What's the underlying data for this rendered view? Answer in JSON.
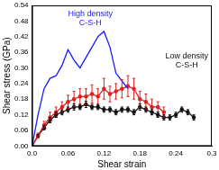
{
  "chart_data": {
    "type": "line",
    "x_label": "Shear strain",
    "y_label": "Shear stress (GPa)",
    "xlim": [
      0,
      0.3
    ],
    "xticks": [
      {
        "value": 0,
        "label": "0.0"
      },
      0.06,
      0.12,
      0.18,
      0.24,
      0.3
    ],
    "ylim": [
      0,
      0.54
    ],
    "yticks": [
      {
        "value": 0,
        "label": "0.00"
      },
      0.06,
      0.12,
      0.18,
      0.24,
      {
        "value": 0.3,
        "label": "0.30"
      },
      0.36,
      0.42,
      0.48,
      0.54
    ],
    "grid": false,
    "annotations": [
      "High density C-S-H",
      "Low density C-S-H"
    ],
    "series": [
      {
        "color": "#1a1aff",
        "marker": "none",
        "x": [
          0,
          0.01,
          0.02,
          0.03,
          0.04,
          0.05,
          0.06,
          0.07,
          0.08,
          0.09,
          0.1,
          0.11,
          0.12,
          0.13,
          0.14,
          0.15,
          0.16
        ],
        "values": [
          0,
          0.12,
          0.22,
          0.26,
          0.27,
          0.31,
          0.37,
          0.33,
          0.3,
          0.34,
          0.38,
          0.42,
          0.44,
          0.38,
          0.28,
          0.25,
          0.22
        ]
      },
      {
        "color": "#e02020",
        "marker": "circle",
        "x": [
          0,
          0.01,
          0.02,
          0.03,
          0.04,
          0.05,
          0.06,
          0.07,
          0.08,
          0.09,
          0.1,
          0.11,
          0.12,
          0.13,
          0.14,
          0.15,
          0.16,
          0.17,
          0.18,
          0.19,
          0.2,
          0.21,
          0.22
        ],
        "values": [
          0,
          0.04,
          0.08,
          0.11,
          0.13,
          0.15,
          0.17,
          0.18,
          0.19,
          0.19,
          0.2,
          0.19,
          0.22,
          0.2,
          0.21,
          0.22,
          0.23,
          0.22,
          0.18,
          0.17,
          0.15,
          0.15,
          0.13
        ],
        "errors": [
          0,
          0.01,
          0.015,
          0.02,
          0.02,
          0.02,
          0.025,
          0.03,
          0.03,
          0.03,
          0.035,
          0.03,
          0.04,
          0.03,
          0.03,
          0.035,
          0.04,
          0.04,
          0.03,
          0.03,
          0.03,
          0.02,
          0.02
        ]
      },
      {
        "color": "#111111",
        "marker": "circle",
        "x": [
          0,
          0.01,
          0.02,
          0.03,
          0.04,
          0.05,
          0.06,
          0.07,
          0.08,
          0.09,
          0.1,
          0.11,
          0.12,
          0.13,
          0.14,
          0.15,
          0.16,
          0.17,
          0.18,
          0.19,
          0.2,
          0.21,
          0.22,
          0.23,
          0.24,
          0.25,
          0.26,
          0.27
        ],
        "values": [
          0,
          0.04,
          0.07,
          0.1,
          0.12,
          0.13,
          0.14,
          0.15,
          0.15,
          0.16,
          0.15,
          0.15,
          0.14,
          0.14,
          0.13,
          0.14,
          0.14,
          0.13,
          0.15,
          0.14,
          0.13,
          0.12,
          0.11,
          0.11,
          0.12,
          0.14,
          0.13,
          0.11
        ],
        "errors": [
          0,
          0.005,
          0.008,
          0.01,
          0.01,
          0.01,
          0.01,
          0.012,
          0.01,
          0.012,
          0.01,
          0.01,
          0.01,
          0.01,
          0.01,
          0.01,
          0.01,
          0.01,
          0.012,
          0.01,
          0.01,
          0.01,
          0.01,
          0.01,
          0.01,
          0.01,
          0.01,
          0.01
        ]
      }
    ]
  }
}
